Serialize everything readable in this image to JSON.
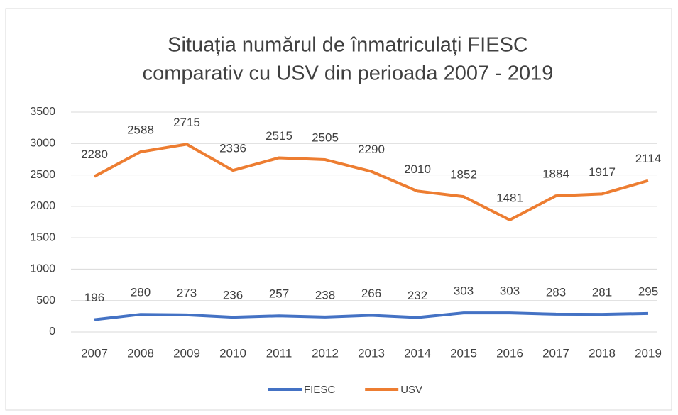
{
  "chart_data": {
    "type": "line",
    "stacked": true,
    "title": [
      "Situația numărul de înmatriculați FIESC",
      "comparativ cu USV din perioada 2007 - 2019"
    ],
    "categories": [
      "2007",
      "2008",
      "2009",
      "2010",
      "2011",
      "2012",
      "2013",
      "2014",
      "2015",
      "2016",
      "2017",
      "2018",
      "2019"
    ],
    "series": [
      {
        "name": "FIESC",
        "color": "#4472c4",
        "values": [
          196,
          280,
          273,
          236,
          257,
          238,
          266,
          232,
          303,
          303,
          283,
          281,
          295
        ]
      },
      {
        "name": "USV",
        "color": "#ed7d31",
        "values": [
          2280,
          2588,
          2715,
          2336,
          2515,
          2505,
          2290,
          2010,
          1852,
          1481,
          1884,
          1917,
          2114
        ]
      }
    ],
    "ylim": [
      0,
      3500
    ],
    "yticks": [
      0,
      500,
      1000,
      1500,
      2000,
      2500,
      3000,
      3500
    ],
    "grid": true,
    "legend": "bottom"
  }
}
